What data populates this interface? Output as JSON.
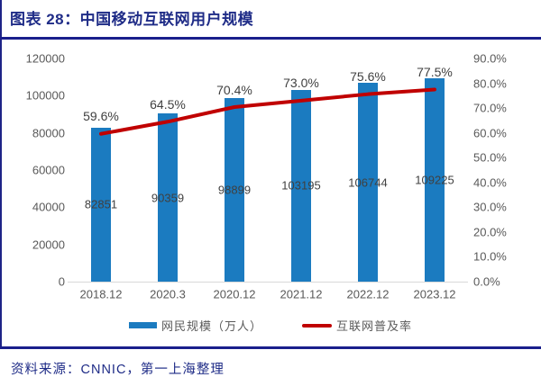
{
  "header": {
    "title": "图表 28：中国移动互联网用户规模"
  },
  "legend": {
    "bar_label": "网民规模（万人）",
    "line_label": "互联网普及率"
  },
  "footer": {
    "source": "资料来源：CNNIC，第一上海整理"
  },
  "colors": {
    "bar": "#1b7bc0",
    "line": "#c00000",
    "accent_navy": "#1f2c87",
    "axis_text": "#595959",
    "label_text": "#404040",
    "axis_line": "#d9d9d9"
  },
  "chart_data": {
    "type": "bar",
    "subtype": "bar+line combo, dual axis",
    "title": "图表 28：中国移动互联网用户规模",
    "categories": [
      "2018.12",
      "2020.3",
      "2020.12",
      "2021.12",
      "2022.12",
      "2023.12"
    ],
    "series": [
      {
        "name": "网民规模（万人）",
        "type": "bar",
        "axis": "left",
        "values": [
          82851,
          90359,
          98899,
          103195,
          106744,
          109225
        ],
        "labels": [
          "82851",
          "90359",
          "98899",
          "103195",
          "106744",
          "109225"
        ]
      },
      {
        "name": "互联网普及率",
        "type": "line",
        "axis": "right",
        "values": [
          59.6,
          64.5,
          70.4,
          73.0,
          75.6,
          77.5
        ],
        "labels": [
          "59.6%",
          "64.5%",
          "70.4%",
          "73.0%",
          "75.6%",
          "77.5%"
        ]
      }
    ],
    "left_axis": {
      "min": 0,
      "max": 120000,
      "ticks": [
        "0",
        "20000",
        "40000",
        "60000",
        "80000",
        "100000",
        "120000"
      ]
    },
    "right_axis": {
      "min": 0,
      "max": 90,
      "ticks": [
        "0.0%",
        "10.0%",
        "20.0%",
        "30.0%",
        "40.0%",
        "50.0%",
        "60.0%",
        "70.0%",
        "80.0%",
        "90.0%"
      ]
    },
    "grid": false,
    "legend_position": "bottom"
  }
}
